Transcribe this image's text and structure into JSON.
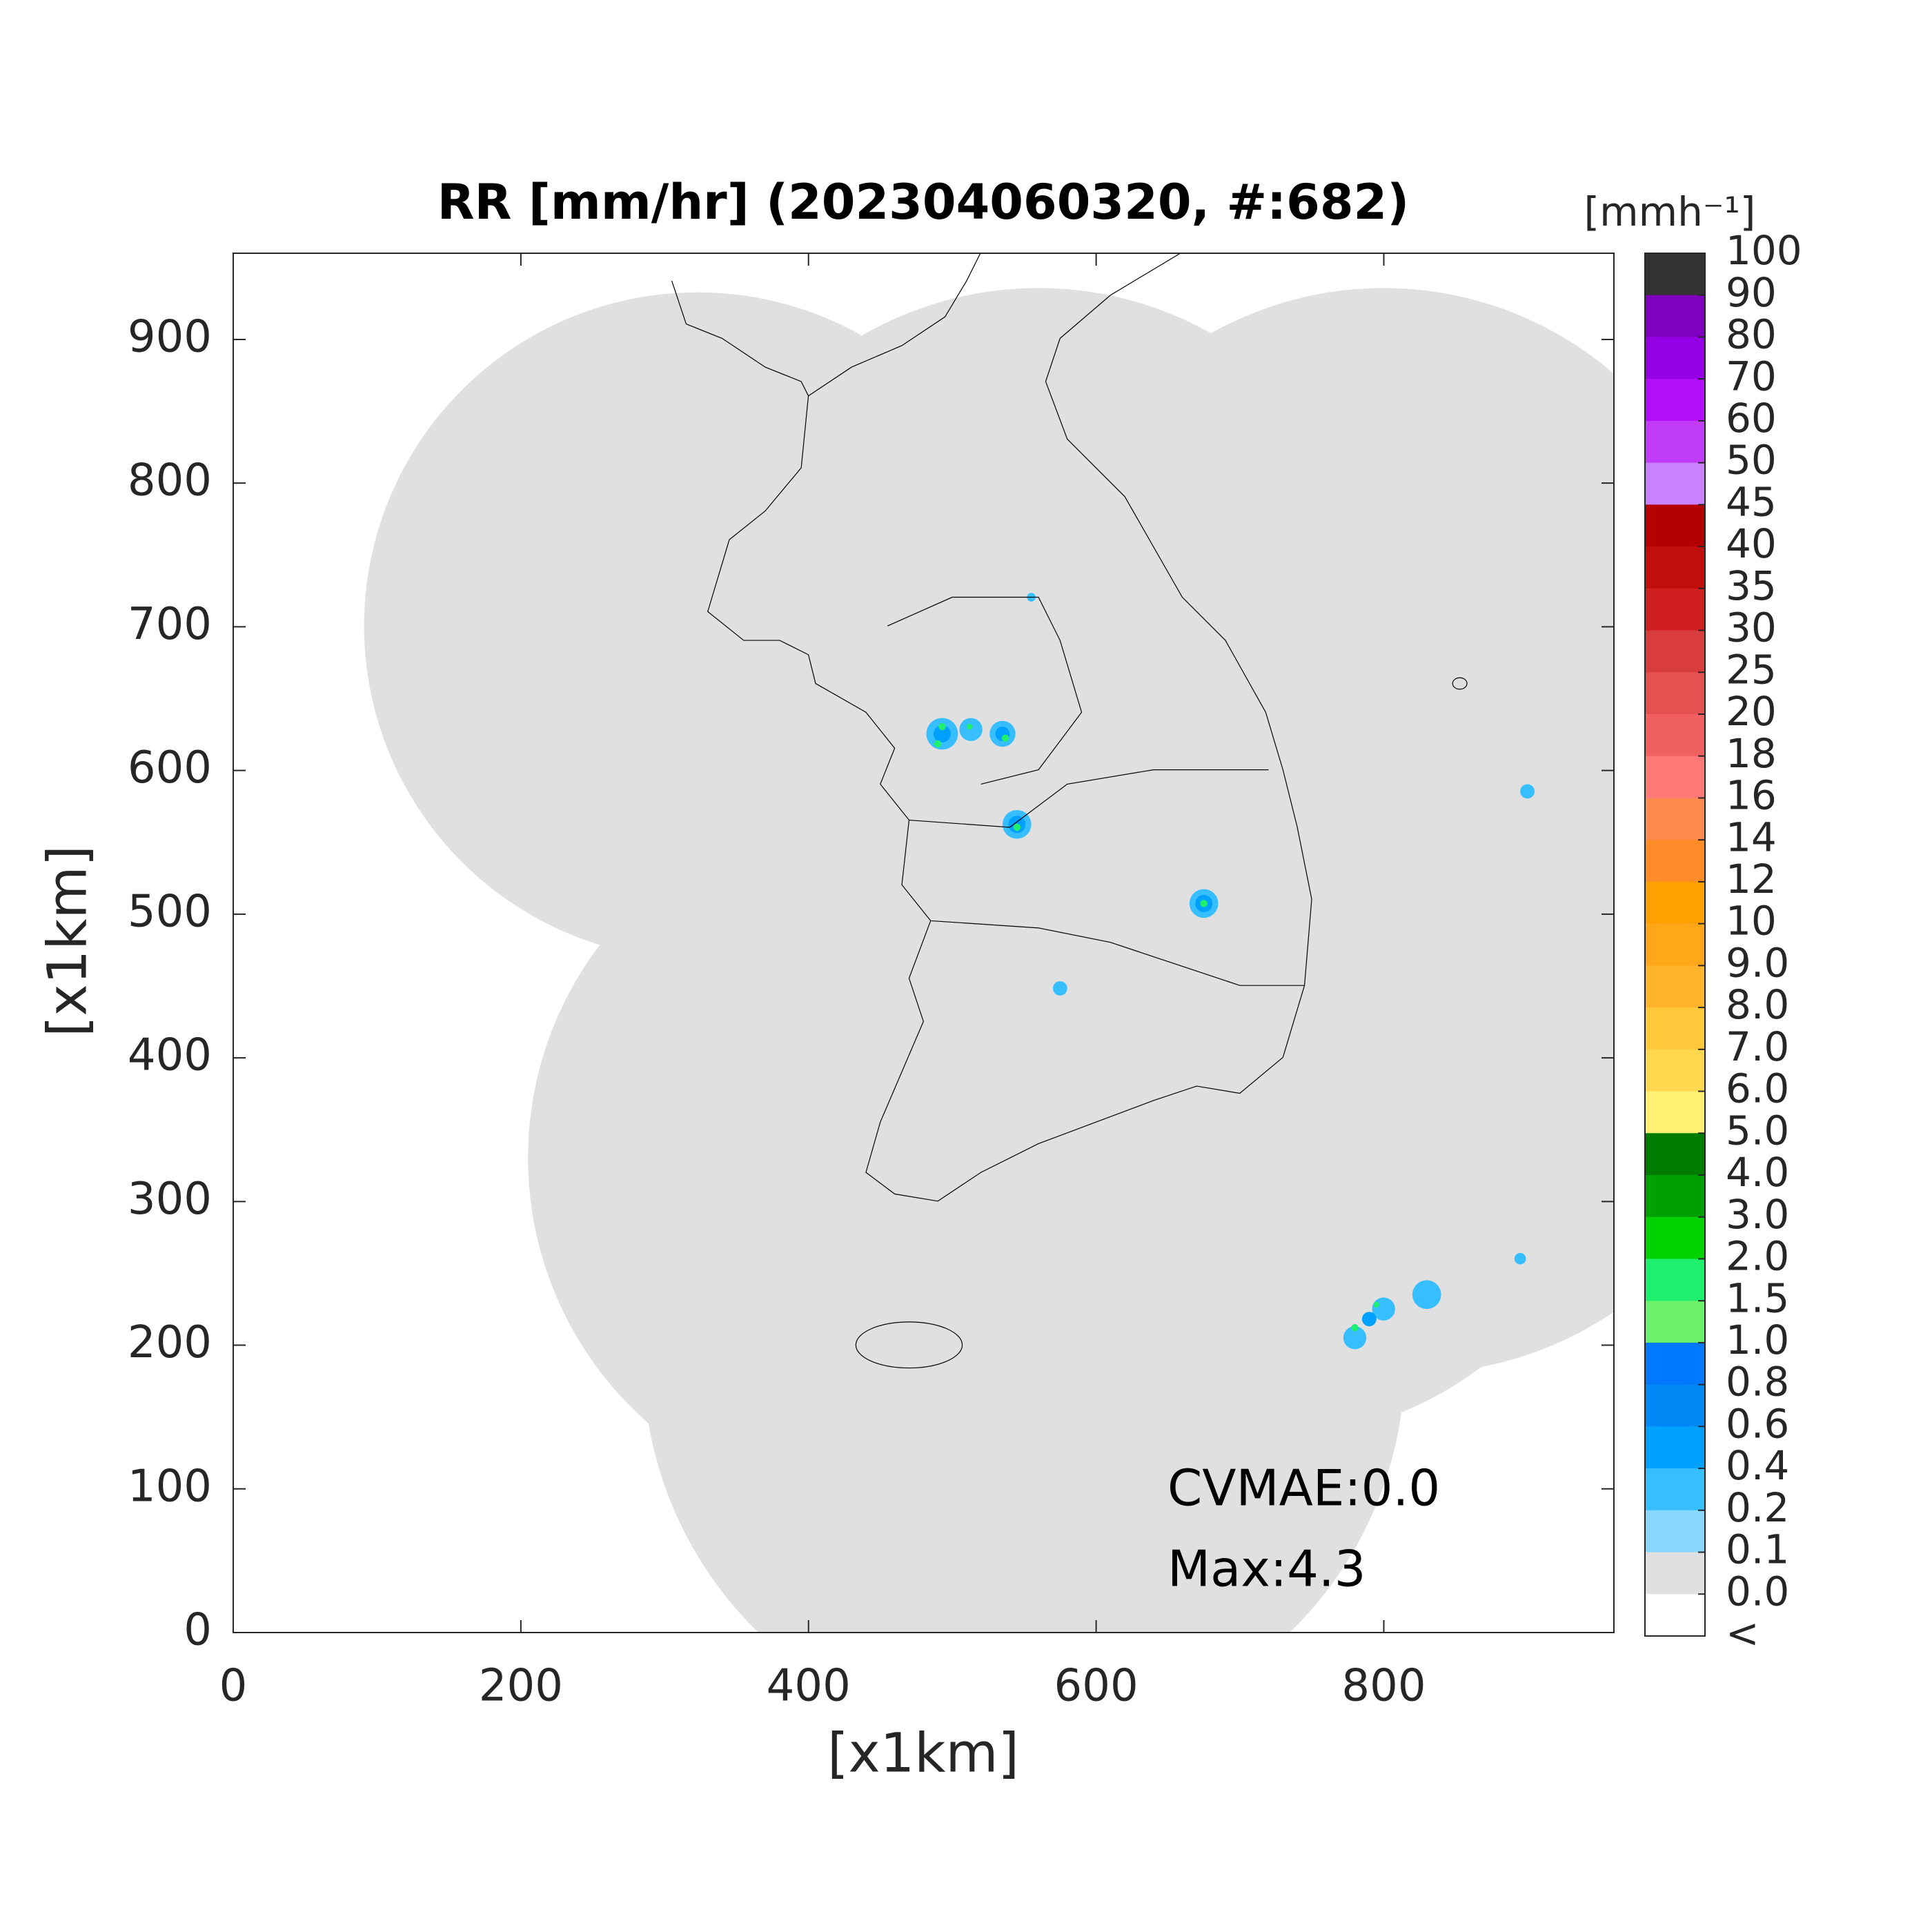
{
  "chart_data": {
    "type": "map",
    "title": "RR [mm/hr] (202304060320, #:682)",
    "xlabel": "[x1km]",
    "ylabel": "[x1km]",
    "xlim": [
      0,
      960
    ],
    "ylim": [
      0,
      960
    ],
    "xticks": [
      0,
      200,
      400,
      600,
      800
    ],
    "yticks": [
      0,
      100,
      200,
      300,
      400,
      500,
      600,
      700,
      800,
      900
    ],
    "annotations": [
      "CVMAE:0.0",
      "Max:4.3"
    ],
    "colorbar": {
      "title": "[mmh⁻¹]",
      "ticks": [
        100,
        90,
        80,
        70,
        60,
        50,
        45,
        40,
        35,
        30,
        25,
        20,
        18,
        16,
        14,
        12,
        10,
        {
          "value": 9,
          "label": "9.0"
        },
        {
          "value": 8,
          "label": "8.0"
        },
        {
          "value": 7,
          "label": "7.0"
        },
        {
          "value": 6,
          "label": "6.0"
        },
        {
          "value": 5,
          "label": "5.0"
        },
        {
          "value": 4,
          "label": "4.0"
        },
        {
          "value": 3,
          "label": "3.0"
        },
        {
          "value": 2,
          "label": "2.0"
        },
        1.5,
        {
          "value": 1,
          "label": "1.0"
        },
        0.8,
        0.6,
        0.4,
        0.2,
        0.1,
        {
          "value": 0,
          "label": "0.0"
        }
      ],
      "under_label": "<",
      "colors": [
        "#333333",
        "#7f00bf",
        "#9300e4",
        "#b30ef9",
        "#c13cf6",
        "#c981ff",
        "#b40000",
        "#c30e0e",
        "#d01f1f",
        "#d93c3c",
        "#e55050",
        "#f06060",
        "#ff7878",
        "#ff8a50",
        "#ff8c28",
        "#ffa000",
        "#ffa619",
        "#ffb42c",
        "#ffc83a",
        "#ffd84f",
        "#fff074",
        "#007d00",
        "#00a000",
        "#00d200",
        "#1ef06e",
        "#6af06a",
        "#0078ff",
        "#0089f5",
        "#00a0ff",
        "#37beff",
        "#87d7ff",
        "#e0e0e0",
        "#ffffff"
      ]
    }
  }
}
